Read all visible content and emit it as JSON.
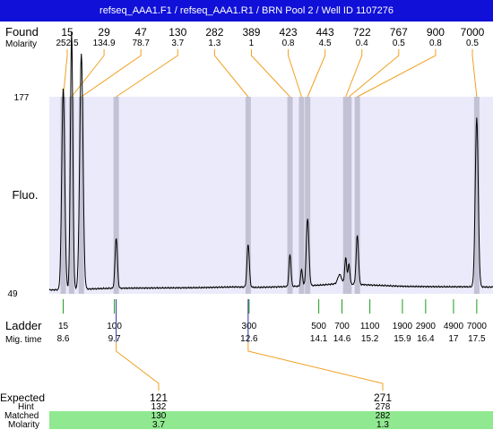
{
  "title": "refseq_AAA1.F1 / refseq_AAA1.R1 / BRN Pool 2 / Well ID 1107276",
  "labels": {
    "found": "Found",
    "molarity": "Molarity",
    "fluo": "Fluo.",
    "ladder": "Ladder",
    "mig_time": "Mig. time",
    "expected": "Expected",
    "hint": "Hint",
    "matched": "Matched",
    "molarity2": "Molarity"
  },
  "colors": {
    "title_bg": "#1010d8",
    "plot_bg": "#eaeafa",
    "band": "#c2c2d4",
    "connector": "#f0a020",
    "ladder_tick": "#1a9a1a",
    "match_bg": "#90e890"
  },
  "chart_data": {
    "type": "line",
    "title": "refseq_AAA1.F1 / refseq_AAA1.R1 / BRN Pool 2 / Well ID 1107276",
    "ylabel": "Fluo.",
    "ylim": [
      49,
      177
    ],
    "xlim": [
      8.3,
      17.85
    ],
    "found": [
      {
        "size": "15",
        "molarity": "252.5",
        "time": 8.6
      },
      {
        "size": "29",
        "molarity": "134.9",
        "time": 8.78
      },
      {
        "size": "47",
        "molarity": "78.7",
        "time": 8.99
      },
      {
        "size": "130",
        "molarity": "3.7",
        "time": 9.74
      },
      {
        "size": "282",
        "molarity": "1.3",
        "time": 12.58
      },
      {
        "size": "389",
        "molarity": "1",
        "time": 13.48
      },
      {
        "size": "423",
        "molarity": "0.8",
        "time": 13.73
      },
      {
        "size": "443",
        "molarity": "4.5",
        "time": 13.86
      },
      {
        "size": "722",
        "molarity": "0.4",
        "time": 14.68
      },
      {
        "size": "767",
        "molarity": "0.5",
        "time": 14.75
      },
      {
        "size": "900",
        "molarity": "0.8",
        "time": 14.93
      },
      {
        "size": "7000",
        "molarity": "0.5",
        "time": 17.5
      }
    ],
    "ladder": [
      {
        "size": "15",
        "time": "8.6",
        "t": 8.6
      },
      {
        "size": "100",
        "time": "9.7",
        "t": 9.7
      },
      {
        "size": "300",
        "time": "12.6",
        "t": 12.6
      },
      {
        "size": "500",
        "time": "14.1",
        "t": 14.1
      },
      {
        "size": "700",
        "time": "14.6",
        "t": 14.6
      },
      {
        "size": "1100",
        "time": "15.2",
        "t": 15.2
      },
      {
        "size": "1900",
        "time": "15.9",
        "t": 15.9
      },
      {
        "size": "2900",
        "time": "16.4",
        "t": 16.4
      },
      {
        "size": "4900",
        "time": "17",
        "t": 17.0
      },
      {
        "size": "7000",
        "time": "17.5",
        "t": 17.5
      }
    ],
    "expected": [
      {
        "size": "121",
        "hint": "132",
        "matched": "130",
        "molarity": "3.7",
        "found_time": 9.74
      },
      {
        "size": "271",
        "hint": "278",
        "matched": "282",
        "molarity": "1.3",
        "found_time": 12.58
      }
    ],
    "trace": {
      "baseline": [
        [
          8.3,
          51.5
        ],
        [
          9.2,
          52.2
        ],
        [
          9.6,
          52.6
        ],
        [
          10.5,
          52.8
        ],
        [
          11.5,
          53.0
        ],
        [
          12.3,
          53.5
        ],
        [
          12.8,
          53.2
        ],
        [
          13.3,
          53.6
        ],
        [
          13.7,
          54
        ],
        [
          14.2,
          54.8
        ],
        [
          14.5,
          55.6
        ],
        [
          14.9,
          55.2
        ],
        [
          15.3,
          54.6
        ],
        [
          16.0,
          53.8
        ],
        [
          16.8,
          53.6
        ],
        [
          17.2,
          53.6
        ],
        [
          17.85,
          53.4
        ]
      ],
      "peaks": [
        {
          "t": 8.6,
          "h": 131,
          "w": 0.032
        },
        {
          "t": 8.78,
          "h": 168,
          "w": 0.026
        },
        {
          "t": 8.99,
          "h": 153,
          "w": 0.035
        },
        {
          "t": 9.74,
          "h": 33,
          "w": 0.025
        },
        {
          "t": 12.58,
          "h": 28,
          "w": 0.025
        },
        {
          "t": 13.48,
          "h": 21,
          "w": 0.022
        },
        {
          "t": 13.73,
          "h": 11,
          "w": 0.02
        },
        {
          "t": 13.86,
          "h": 44,
          "w": 0.028
        },
        {
          "t": 14.55,
          "h": 6,
          "w": 0.04
        },
        {
          "t": 14.68,
          "h": 17,
          "w": 0.022
        },
        {
          "t": 14.75,
          "h": 13,
          "w": 0.02
        },
        {
          "t": 14.93,
          "h": 32,
          "w": 0.025
        },
        {
          "t": 17.5,
          "h": 110,
          "w": 0.032
        }
      ]
    }
  }
}
